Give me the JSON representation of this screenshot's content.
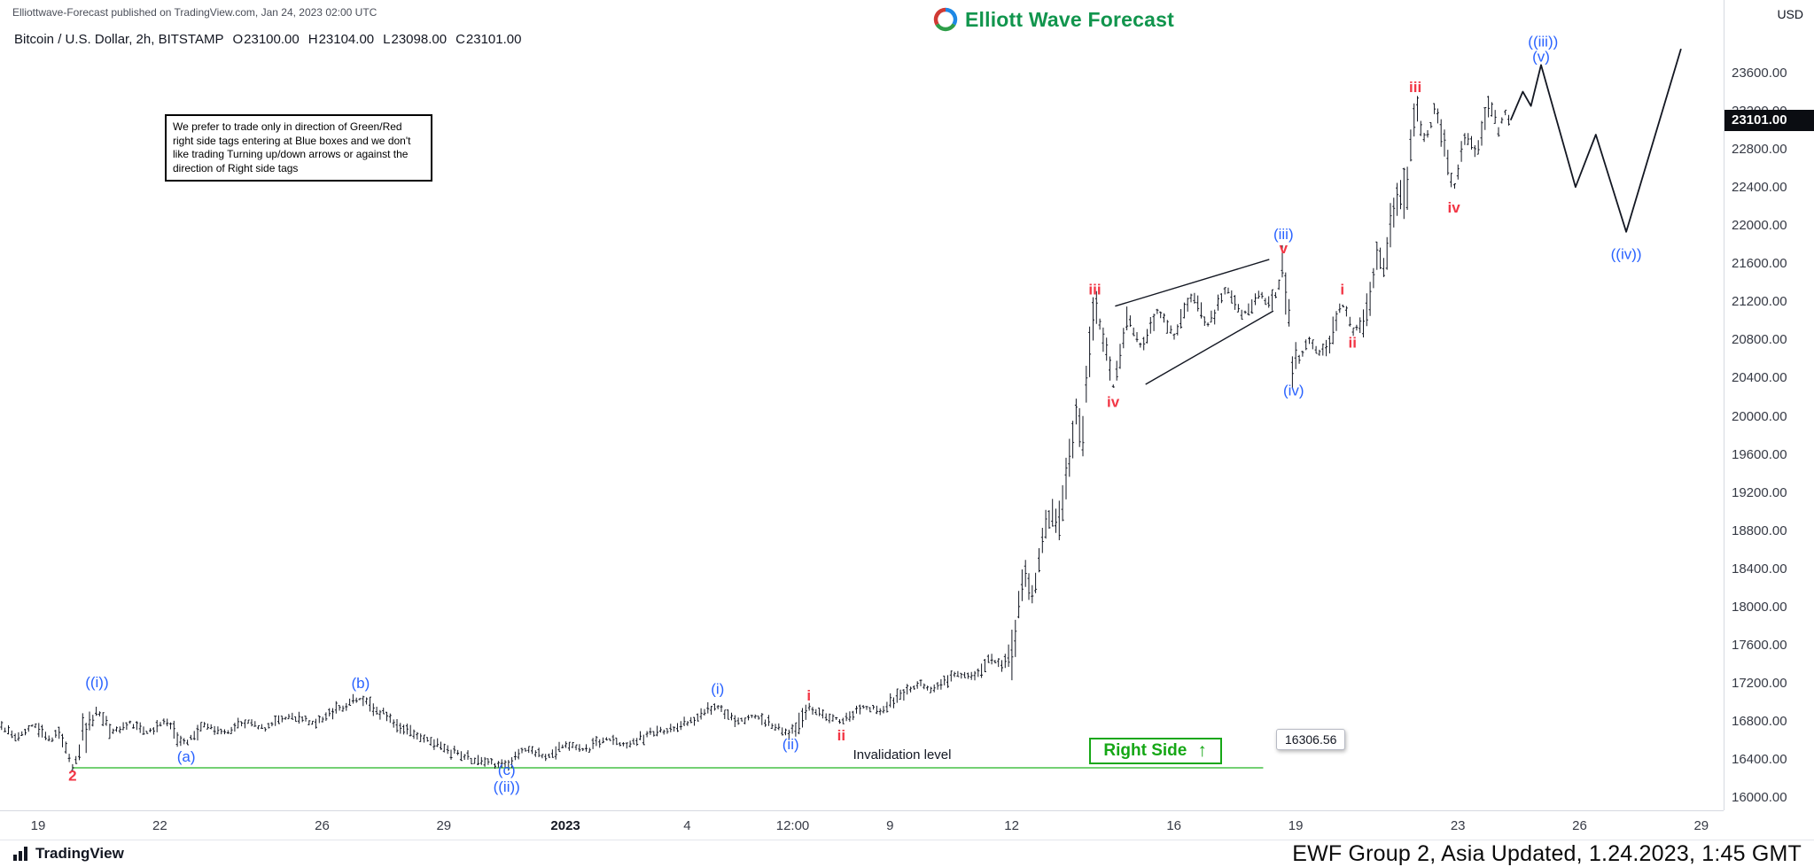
{
  "header": {
    "attribution": "Elliottwave-Forecast published on TradingView.com, Jan 24, 2023 02:00 UTC",
    "brand": "Elliott Wave Forecast",
    "symbol_line": {
      "symbol": "Bitcoin / U.S. Dollar, 2h, BITSTAMP",
      "o_label": "O",
      "o_value": "23100.00",
      "h_label": "H",
      "h_value": "23104.00",
      "l_label": "L",
      "l_value": "23098.00",
      "c_label": "C",
      "c_value": "23101.00"
    }
  },
  "note_box": {
    "text": "We prefer to trade only in direction of Green/Red right side tags entering at Blue boxes and we don't like trading Turning up/down arrows or against the direction of Right side tags"
  },
  "price_axis": {
    "unit": "USD",
    "ticks": [
      "23600.00",
      "23200.00",
      "22800.00",
      "22400.00",
      "22000.00",
      "21600.00",
      "21200.00",
      "20800.00",
      "20400.00",
      "20000.00",
      "19600.00",
      "19200.00",
      "18800.00",
      "18400.00",
      "18000.00",
      "17600.00",
      "17200.00",
      "16800.00",
      "16400.00",
      "16000.00"
    ],
    "last_price": "23101.00",
    "last_price_value": 23101
  },
  "invalidation": {
    "level": 16306.56,
    "label": "16306.56",
    "text": "Invalidation level",
    "right_side_text": "Right Side",
    "arrow": "↑",
    "from_day": 0.85,
    "to_day": 30.2,
    "text_day": 21.3,
    "box_day": 25.9,
    "tag_day": 30.3,
    "line_color": "#74d074",
    "tag_green": "#16a716"
  },
  "chart_data": {
    "type": "bar",
    "title": "Bitcoin / U.S. Dollar, 2h, BITSTAMP",
    "x_unit": "days since 2022-12-19",
    "xlim": [
      -0.94,
      41.55
    ],
    "ylim": [
      15861,
      24362
    ],
    "bar_step_days": 0.0833,
    "bar_color": "#131722",
    "current_price": 23101,
    "time_ticks": [
      {
        "day": 0,
        "label": "19"
      },
      {
        "day": 3,
        "label": "22"
      },
      {
        "day": 7,
        "label": "26"
      },
      {
        "day": 10,
        "label": "29"
      },
      {
        "day": 13,
        "label": "2023"
      },
      {
        "day": 16,
        "label": "4"
      },
      {
        "day": 18.6,
        "label": "12:00"
      },
      {
        "day": 21,
        "label": "9"
      },
      {
        "day": 24,
        "label": "12"
      },
      {
        "day": 28,
        "label": "16"
      },
      {
        "day": 31,
        "label": "19"
      },
      {
        "day": 35,
        "label": "23"
      },
      {
        "day": 38,
        "label": "26"
      },
      {
        "day": 41,
        "label": "29"
      }
    ],
    "swings": [
      [
        -0.9,
        16720
      ],
      [
        -0.5,
        16640
      ],
      [
        -0.1,
        16760
      ],
      [
        0.3,
        16580
      ],
      [
        0.55,
        16700
      ],
      [
        0.85,
        16306
      ],
      [
        1.1,
        16620
      ],
      [
        1.45,
        16900
      ],
      [
        1.8,
        16680
      ],
      [
        2.3,
        16780
      ],
      [
        2.7,
        16660
      ],
      [
        3.1,
        16800
      ],
      [
        3.65,
        16560
      ],
      [
        4.1,
        16750
      ],
      [
        4.6,
        16680
      ],
      [
        5.1,
        16800
      ],
      [
        5.6,
        16720
      ],
      [
        6.2,
        16840
      ],
      [
        6.8,
        16780
      ],
      [
        7.4,
        16920
      ],
      [
        7.95,
        17030
      ],
      [
        8.5,
        16880
      ],
      [
        9.0,
        16700
      ],
      [
        9.6,
        16620
      ],
      [
        10.2,
        16480
      ],
      [
        10.7,
        16400
      ],
      [
        11.1,
        16360
      ],
      [
        11.55,
        16330
      ],
      [
        12.0,
        16500
      ],
      [
        12.5,
        16420
      ],
      [
        13.0,
        16560
      ],
      [
        13.5,
        16480
      ],
      [
        14.0,
        16610
      ],
      [
        14.5,
        16540
      ],
      [
        15.1,
        16660
      ],
      [
        15.7,
        16720
      ],
      [
        16.2,
        16820
      ],
      [
        16.75,
        16950
      ],
      [
        17.2,
        16800
      ],
      [
        17.7,
        16840
      ],
      [
        18.2,
        16730
      ],
      [
        18.55,
        16670
      ],
      [
        19.0,
        16940
      ],
      [
        19.4,
        16850
      ],
      [
        19.8,
        16800
      ],
      [
        20.3,
        16950
      ],
      [
        20.8,
        16900
      ],
      [
        21.2,
        17060
      ],
      [
        21.7,
        17200
      ],
      [
        22.1,
        17120
      ],
      [
        22.6,
        17300
      ],
      [
        23.1,
        17260
      ],
      [
        23.5,
        17450
      ],
      [
        23.8,
        17380
      ],
      [
        24.05,
        17600
      ],
      [
        24.3,
        18400
      ],
      [
        24.5,
        18150
      ],
      [
        24.8,
        18700
      ],
      [
        25.0,
        19000
      ],
      [
        25.15,
        18820
      ],
      [
        25.45,
        19650
      ],
      [
        25.6,
        19980
      ],
      [
        25.75,
        19750
      ],
      [
        26.05,
        21230
      ],
      [
        26.5,
        20300
      ],
      [
        26.85,
        21050
      ],
      [
        27.2,
        20720
      ],
      [
        27.6,
        21120
      ],
      [
        28.0,
        20830
      ],
      [
        28.45,
        21260
      ],
      [
        28.85,
        20940
      ],
      [
        29.3,
        21360
      ],
      [
        29.7,
        21040
      ],
      [
        30.1,
        21280
      ],
      [
        30.45,
        21160
      ],
      [
        30.7,
        21620
      ],
      [
        30.95,
        20480
      ],
      [
        31.3,
        20800
      ],
      [
        31.6,
        20650
      ],
      [
        31.9,
        20880
      ],
      [
        32.15,
        21180
      ],
      [
        32.4,
        20900
      ],
      [
        32.7,
        21020
      ],
      [
        33.0,
        21600
      ],
      [
        33.2,
        21500
      ],
      [
        33.5,
        22400
      ],
      [
        33.7,
        22250
      ],
      [
        33.95,
        23300
      ],
      [
        34.2,
        22880
      ],
      [
        34.45,
        23230
      ],
      [
        34.9,
        22400
      ],
      [
        35.2,
        22950
      ],
      [
        35.5,
        22750
      ],
      [
        35.8,
        23280
      ],
      [
        36.0,
        23000
      ],
      [
        36.15,
        23180
      ],
      [
        36.3,
        23101
      ]
    ],
    "projection": [
      [
        36.3,
        23101
      ],
      [
        36.6,
        23400
      ],
      [
        36.8,
        23250
      ],
      [
        37.05,
        23680
      ],
      [
        37.9,
        22400
      ],
      [
        38.4,
        22950
      ],
      [
        39.15,
        21930
      ],
      [
        40.5,
        23850
      ]
    ],
    "trendlines": [
      [
        [
          26.55,
          21150
        ],
        [
          30.35,
          21640
        ]
      ],
      [
        [
          27.3,
          20330
        ],
        [
          30.45,
          21100
        ]
      ]
    ],
    "wave_labels": {
      "blue_color": "#2962FF",
      "red_color": "#F23645",
      "blue": [
        {
          "d": 1.45,
          "p": 17210,
          "t": "((i))"
        },
        {
          "d": 3.65,
          "p": 16430,
          "t": "(a)"
        },
        {
          "d": 7.95,
          "p": 17200,
          "t": "(b)"
        },
        {
          "d": 11.55,
          "p": 16290,
          "t": "(c)"
        },
        {
          "d": 11.55,
          "p": 16110,
          "t": "((ii))"
        },
        {
          "d": 16.75,
          "p": 17140,
          "t": "(i)"
        },
        {
          "d": 18.55,
          "p": 16560,
          "t": "(ii)"
        },
        {
          "d": 30.7,
          "p": 21910,
          "t": "(iii)"
        },
        {
          "d": 30.95,
          "p": 20270,
          "t": "(iv)"
        },
        {
          "d": 37.05,
          "p": 23770,
          "t": "(v)"
        },
        {
          "d": 37.1,
          "p": 23930,
          "t": "((iii))"
        },
        {
          "d": 39.15,
          "p": 21700,
          "t": "((iv))"
        }
      ],
      "red": [
        {
          "d": 0.85,
          "p": 16230,
          "t": "2"
        },
        {
          "d": 19.0,
          "p": 17070,
          "t": "i"
        },
        {
          "d": 19.8,
          "p": 16650,
          "t": "ii"
        },
        {
          "d": 26.05,
          "p": 21330,
          "t": "iii"
        },
        {
          "d": 26.5,
          "p": 20150,
          "t": "iv"
        },
        {
          "d": 30.7,
          "p": 21760,
          "t": "v"
        },
        {
          "d": 32.15,
          "p": 21330,
          "t": "i"
        },
        {
          "d": 32.4,
          "p": 20770,
          "t": "ii"
        },
        {
          "d": 33.95,
          "p": 23450,
          "t": "iii"
        },
        {
          "d": 34.9,
          "p": 22190,
          "t": "iv"
        }
      ]
    }
  },
  "footer": {
    "tradingview": "TradingView",
    "right_text": "EWF Group 2, Asia Updated, 1.24.2023, 1:45 GMT"
  }
}
